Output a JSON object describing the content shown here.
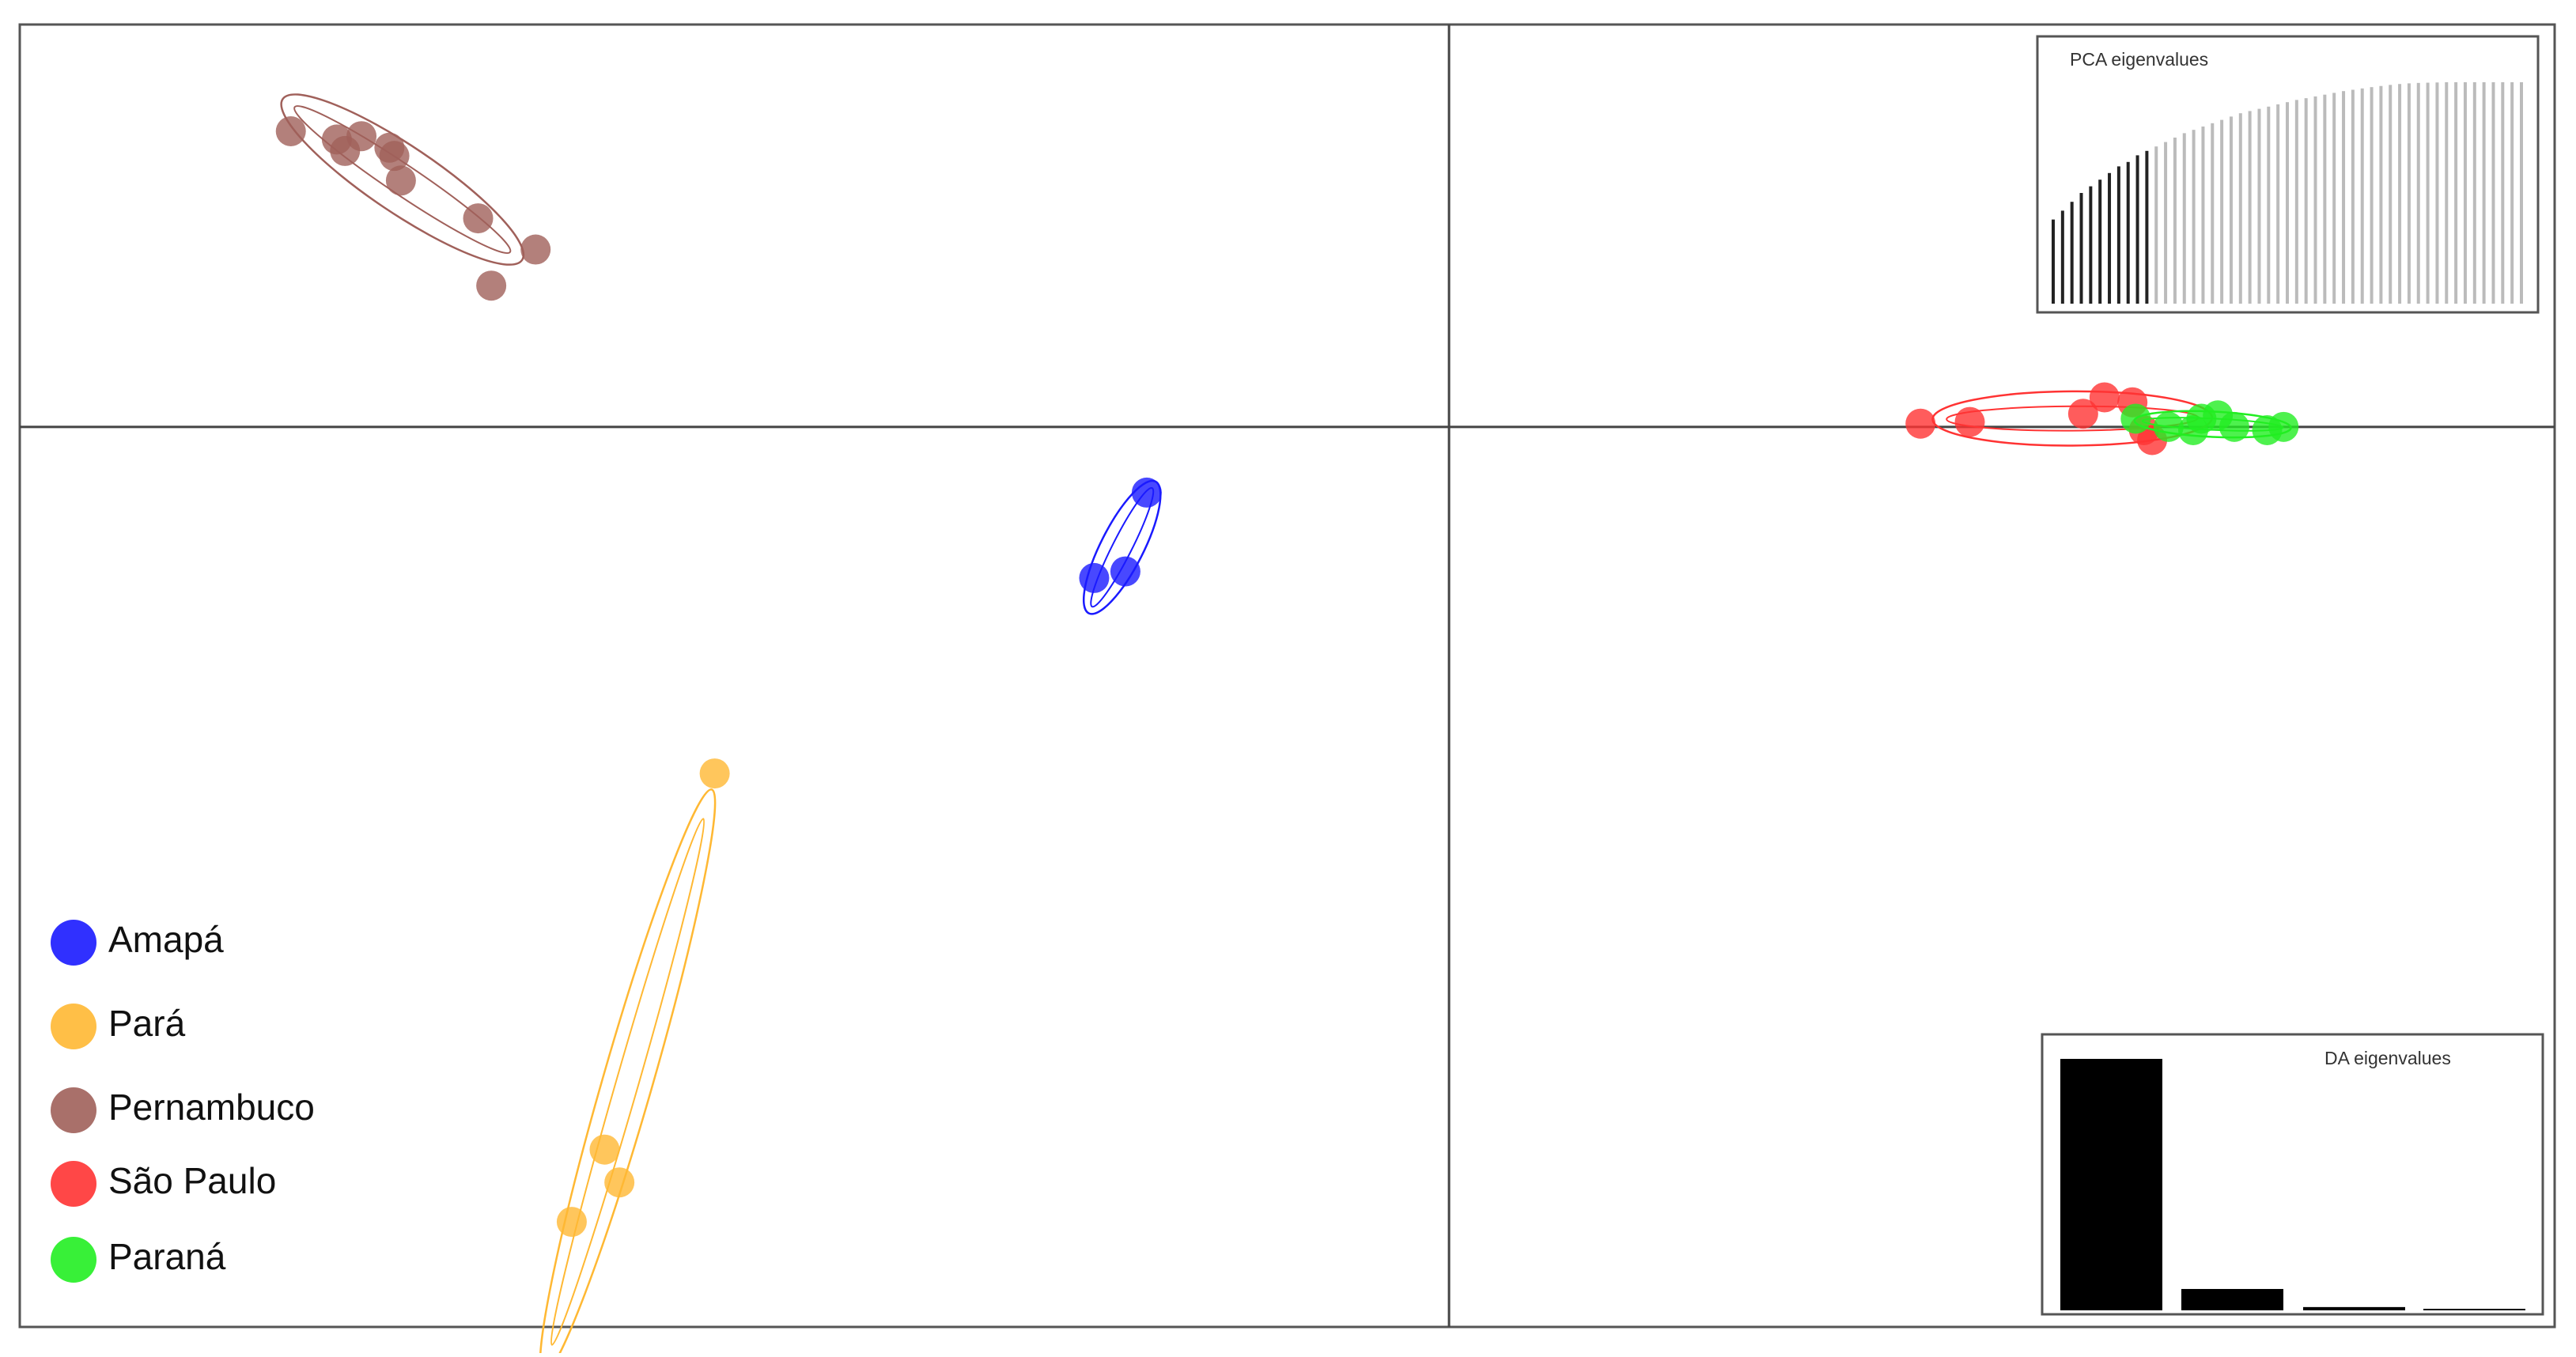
{
  "chart_data": {
    "type": "scatter",
    "xlim": [
      -17.4,
      13.46
    ],
    "ylim": [
      -10.96,
      4.9
    ],
    "legend": "bottomleft",
    "series": [
      {
        "name": "Amapá",
        "color": "#1a1aff",
        "x": [
          -3.68,
          -3.94,
          -4.32
        ],
        "y": [
          -0.8,
          -1.76,
          -1.84
        ]
      },
      {
        "name": "Pará",
        "color": "#ffb833",
        "x": [
          -8.94,
          -10.28,
          -10.1,
          -10.68
        ],
        "y": [
          -4.22,
          -8.8,
          -9.2,
          -9.68
        ]
      },
      {
        "name": "Pernambuco",
        "color": "#a0605a",
        "x": [
          -14.1,
          -13.54,
          -13.44,
          -13.24,
          -12.9,
          -12.84,
          -12.76,
          -11.82,
          -11.12,
          -11.66
        ],
        "y": [
          3.6,
          3.5,
          3.36,
          3.54,
          3.4,
          3.3,
          3.0,
          2.54,
          2.16,
          1.72
        ]
      },
      {
        "name": "São Paulo",
        "color": "#ff3333",
        "x": [
          5.74,
          6.34,
          7.72,
          7.98,
          8.32,
          8.46,
          8.56
        ],
        "y": [
          0.04,
          0.06,
          0.16,
          0.36,
          0.3,
          -0.04,
          -0.16
        ]
      },
      {
        "name": "Paraná",
        "color": "#22ee22",
        "x": [
          8.36,
          8.76,
          9.06,
          9.36,
          9.56,
          9.96,
          10.16,
          9.16
        ],
        "y": [
          0.1,
          0,
          -0.04,
          0.14,
          0,
          -0.04,
          0,
          0.1
        ]
      }
    ],
    "pca_eigenvalues": {
      "title": "PCA eigenvalues",
      "retained": 11,
      "values": [
        38,
        42,
        46,
        50,
        53,
        56,
        59,
        62,
        64,
        67,
        69,
        71,
        73,
        75,
        77,
        78.5,
        80,
        81.5,
        83,
        84.5,
        86,
        87,
        88,
        89,
        90,
        91,
        92,
        92.8,
        93.6,
        94.4,
        95.2,
        96,
        96.6,
        97.2,
        97.8,
        98.3,
        98.8,
        99.2,
        99.5,
        99.7,
        99.8,
        99.9,
        100,
        100,
        100,
        100,
        100,
        100,
        100,
        100,
        100
      ]
    },
    "da_eigenvalues": {
      "title": "DA eigenvalues",
      "values": [
        100,
        8.5,
        1.3,
        0.6
      ]
    }
  }
}
